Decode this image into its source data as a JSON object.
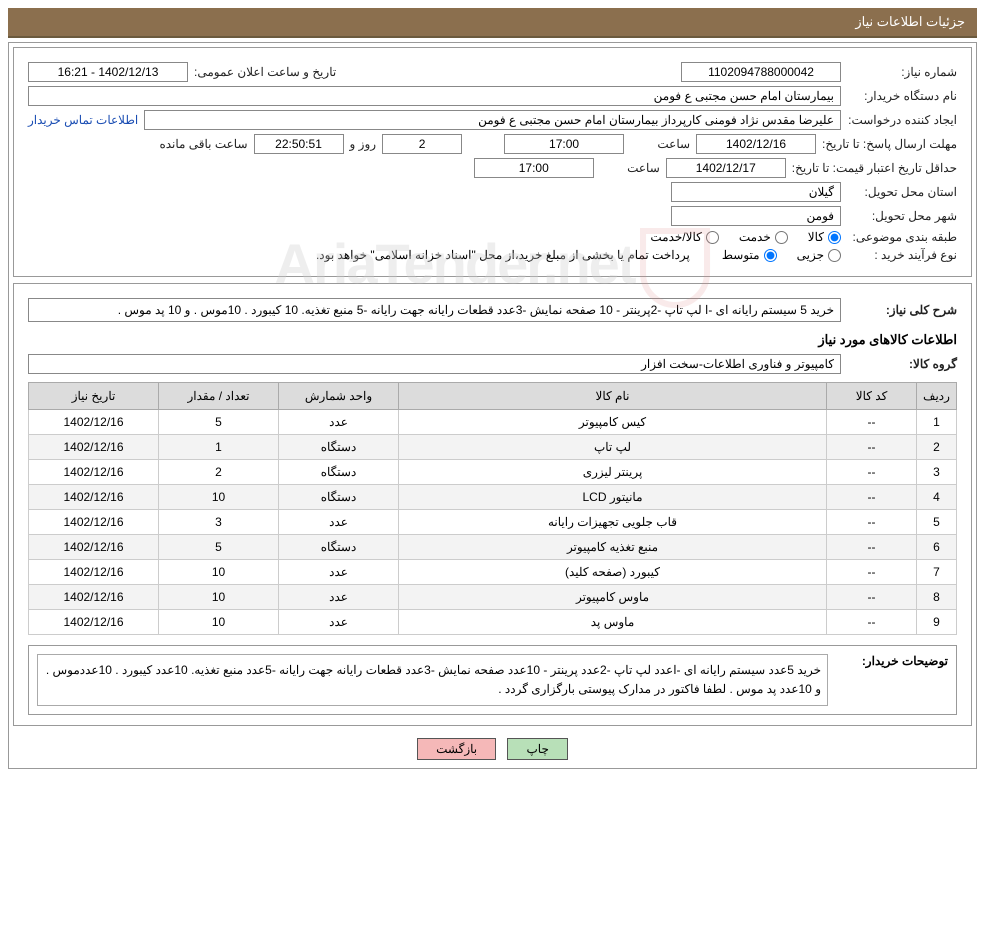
{
  "header": {
    "title": "جزئیات اطلاعات نیاز"
  },
  "info": {
    "need_no_label": "شماره نیاز:",
    "need_no": "1102094788000042",
    "announce_label": "تاریخ و ساعت اعلان عمومی:",
    "announce_value": "1402/12/13 - 16:21",
    "buyer_label": "نام دستگاه خریدار:",
    "buyer_value": "بیمارستان امام حسن مجتبی ع  فومن",
    "requester_label": "ایجاد کننده درخواست:",
    "requester_value": "علیرضا مقدس نژاد فومنی کارپرداز بیمارستان امام حسن مجتبی ع  فومن",
    "contact_link": "اطلاعات تماس خریدار",
    "deadline_label": "مهلت ارسال پاسخ:",
    "to_date_label": "تا تاریخ:",
    "deadline_date": "1402/12/16",
    "time_label": "ساعت",
    "deadline_time": "17:00",
    "days_remaining": "2",
    "days_and_label": "روز و",
    "countdown": "22:50:51",
    "remaining_label": "ساعت باقی مانده",
    "validity_label": "حداقل تاریخ اعتبار قیمت:",
    "validity_date": "1402/12/17",
    "validity_time": "17:00",
    "province_label": "استان محل تحویل:",
    "province_value": "گیلان",
    "city_label": "شهر محل تحویل:",
    "city_value": "فومن",
    "category_label": "طبقه بندی موضوعی:",
    "cat_goods": "کالا",
    "cat_service": "خدمت",
    "cat_goods_service": "کالا/خدمت",
    "process_label": "نوع فرآیند خرید :",
    "proc_partial": "جزیی",
    "proc_medium": "متوسط",
    "process_note": "پرداخت تمام یا بخشی از مبلغ خرید،از محل \"اسناد خزانه اسلامی\" خواهد بود."
  },
  "detail": {
    "summary_label": "شرح کلی نیاز:",
    "summary_value": "خرید 5 سیستم رایانه ای -ا لپ تاپ -2پرینتر - 10 صفحه نمایش -3عدد قطعات رایانه جهت رایانه -5 منبع تغذیه. 10 کیبورد . 10موس . و 10 پد موس .",
    "items_title": "اطلاعات کالاهای مورد نیاز",
    "group_label": "گروه کالا:",
    "group_value": "کامپیوتر و فناوری اطلاعات-سخت افزار"
  },
  "table": {
    "headers": {
      "idx": "ردیف",
      "code": "کد کالا",
      "name": "نام کالا",
      "unit": "واحد شمارش",
      "qty": "تعداد / مقدار",
      "date": "تاریخ نیاز"
    },
    "rows": [
      {
        "idx": "1",
        "code": "--",
        "name": "کیس کامپیوتر",
        "unit": "عدد",
        "qty": "5",
        "date": "1402/12/16"
      },
      {
        "idx": "2",
        "code": "--",
        "name": "لپ تاپ",
        "unit": "دستگاه",
        "qty": "1",
        "date": "1402/12/16"
      },
      {
        "idx": "3",
        "code": "--",
        "name": "پرینتر لیزری",
        "unit": "دستگاه",
        "qty": "2",
        "date": "1402/12/16"
      },
      {
        "idx": "4",
        "code": "--",
        "name": "مانیتور LCD",
        "unit": "دستگاه",
        "qty": "10",
        "date": "1402/12/16"
      },
      {
        "idx": "5",
        "code": "--",
        "name": "قاب جلویی تجهیزات رایانه",
        "unit": "عدد",
        "qty": "3",
        "date": "1402/12/16"
      },
      {
        "idx": "6",
        "code": "--",
        "name": "منبع تغذیه کامپیوتر",
        "unit": "دستگاه",
        "qty": "5",
        "date": "1402/12/16"
      },
      {
        "idx": "7",
        "code": "--",
        "name": "کیبورد (صفحه کلید)",
        "unit": "عدد",
        "qty": "10",
        "date": "1402/12/16"
      },
      {
        "idx": "8",
        "code": "--",
        "name": "ماوس کامپیوتر",
        "unit": "عدد",
        "qty": "10",
        "date": "1402/12/16"
      },
      {
        "idx": "9",
        "code": "--",
        "name": "ماوس پد",
        "unit": "عدد",
        "qty": "10",
        "date": "1402/12/16"
      }
    ]
  },
  "buyer_desc": {
    "label": "توضیحات خریدار:",
    "text": "خرید 5عدد سیستم رایانه ای -اعدد لپ تاپ -2عدد پرینتر - 10عدد صفحه نمایش -3عدد قطعات رایانه جهت رایانه -5عدد منبع تغذیه. 10عدد کیبورد . 10عددموس . و 10عدد پد موس . لطفا فاکتور در مدارک پیوستی بارگزاری گردد ."
  },
  "buttons": {
    "print": "چاپ",
    "back": "بازگشت"
  },
  "watermark": "AriaTender.net"
}
